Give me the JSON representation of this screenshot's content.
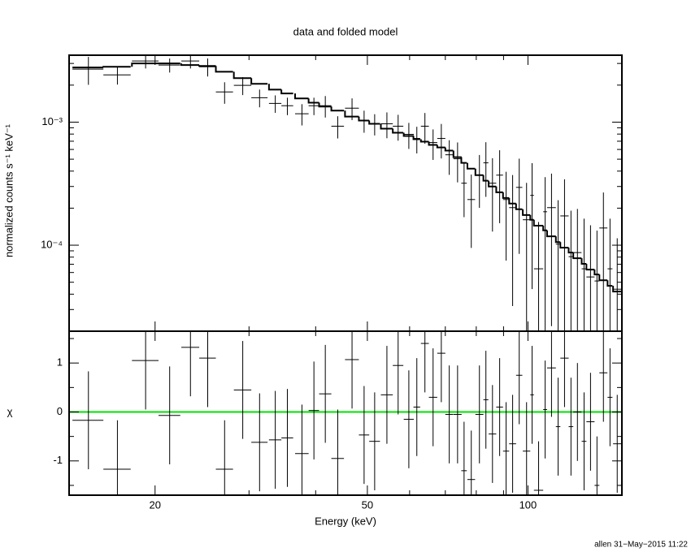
{
  "chart_data": [
    {
      "type": "errorbar",
      "title": "data and folded model",
      "ylabel": "normalized counts s⁻¹ keV⁻¹",
      "log_x": true,
      "log_y": true,
      "xlim": [
        13.8,
        150
      ],
      "ylim": [
        2e-05,
        0.0035
      ],
      "yticks": [
        {
          "value": 0.001,
          "label": "10⁻³"
        },
        {
          "value": 0.0001,
          "label": "10⁻⁴"
        }
      ],
      "yminorticks": [
        3e-05,
        4e-05,
        5e-05,
        6e-05,
        7e-05,
        8e-05,
        9e-05,
        0.0002,
        0.0003,
        0.0004,
        0.0005,
        0.0006,
        0.0007,
        0.0008,
        0.0009,
        0.002,
        0.003
      ],
      "color": "#000000",
      "x": [
        15.0,
        17.0,
        19.2,
        21.3,
        23.3,
        25.1,
        27.0,
        29.2,
        31.4,
        33.6,
        35.4,
        37.7,
        39.7,
        41.7,
        44.0,
        46.8,
        49.3,
        51.6,
        54.4,
        57.1,
        59.8,
        61.9,
        64.1,
        66.4,
        68.8,
        71.2,
        73.8,
        75.9,
        78.3,
        81.1,
        83.4,
        85.8,
        88.5,
        91.0,
        93.6,
        96.3,
        99.4,
        101.8,
        104.7,
        107.7,
        110.7,
        113.9,
        117.1,
        120.4,
        123.8,
        127.4,
        131.0,
        134.7,
        138.5,
        142.5,
        147.0
      ],
      "xerr": [
        1.0,
        1.0,
        1.1,
        1.0,
        0.9,
        0.9,
        1.0,
        1.1,
        1.1,
        0.9,
        0.9,
        1.1,
        0.9,
        1.1,
        1.2,
        1.4,
        1.1,
        1.2,
        1.4,
        1.3,
        1.3,
        0.9,
        1.1,
        1.2,
        1.2,
        1.2,
        1.3,
        0.9,
        1.3,
        1.4,
        0.9,
        1.4,
        1.3,
        1.2,
        1.4,
        1.3,
        1.6,
        0.8,
        2.1,
        0.9,
        2.1,
        1.1,
        2.1,
        1.2,
        2.2,
        1.3,
        2.3,
        1.4,
        2.4,
        1.5,
        2.6
      ],
      "values": [
        0.0027,
        0.00242,
        0.00314,
        0.00291,
        0.00314,
        0.00282,
        0.00176,
        0.00199,
        0.00158,
        0.00142,
        0.00136,
        0.00117,
        0.00136,
        0.00136,
        0.000927,
        0.0013,
        0.00103,
        0.00097,
        0.00097,
        0.000927,
        0.000796,
        0.000737,
        0.000927,
        0.000683,
        0.000737,
        0.000543,
        0.000504,
        0.000319,
        0.000235,
        0.000371,
        0.000467,
        0.000319,
        0.000371,
        0.000235,
        0.000202,
        0.000295,
        0.000161,
        0.000254,
        6.43e-05,
        0.000187,
        0.000202,
        0.000102,
        0.000173,
        8.07e-05,
        8.71e-05,
        6.43e-05,
        5.52e-05,
        5.12e-05,
        0.000138,
        6.43e-05,
        4.39e-05
      ],
      "errors": [
        0.00069,
        0.0004,
        0.00041,
        0.00038,
        0.00041,
        0.00047,
        0.00035,
        0.00033,
        0.00026,
        0.00023,
        0.00022,
        0.00023,
        0.00022,
        0.00027,
        0.00019,
        0.00026,
        0.00021,
        0.00019,
        0.00023,
        0.00022,
        0.00019,
        0.00018,
        0.00026,
        0.00019,
        0.00023,
        0.00017,
        0.00018,
        0.00015,
        0.00014,
        0.00017,
        0.00022,
        0.00019,
        0.00022,
        0.00016,
        0.00017,
        0.00021,
        0.00016,
        0.00021,
        9e-05,
        0.00017,
        0.00018,
        0.00013,
        0.00017,
        0.00011,
        0.00011,
        0.0001,
        9e-05,
        8e-05,
        0.00013,
        0.0001,
        7e-05
      ],
      "model": {
        "color": "#000000",
        "values": [
          0.00278,
          0.00282,
          0.003,
          0.003,
          0.00291,
          0.00286,
          0.00257,
          0.00228,
          0.00205,
          0.00184,
          0.00171,
          0.00156,
          0.00144,
          0.00134,
          0.00124,
          0.00111,
          0.00103,
          0.00097,
          0.000885,
          0.00082,
          0.000772,
          0.000726,
          0.000694,
          0.000653,
          0.000623,
          0.000587,
          0.000519,
          0.000467,
          0.000419,
          0.000371,
          0.000334,
          0.0003,
          0.000269,
          0.000242,
          0.000218,
          0.000196,
          0.000176,
          0.000161,
          0.000144,
          0.000132,
          0.000118,
          0.000106,
          9.55e-05,
          8.71e-05,
          7.83e-05,
          7.05e-05,
          6.33e-05,
          5.78e-05,
          5.19e-05,
          4.67e-05,
          4.2e-05
        ]
      }
    },
    {
      "type": "residual",
      "ylabel": "χ",
      "xlabel": "Energy (keV)",
      "log_x": true,
      "log_y": false,
      "xlim": [
        13.8,
        150
      ],
      "ylim": [
        -1.7,
        1.65
      ],
      "xticks": [
        20,
        50,
        100
      ],
      "xminorticks": [
        30,
        40,
        60,
        70,
        80,
        90
      ],
      "yticks": [
        -1,
        0,
        1
      ],
      "yminorticks": [
        -1.5,
        -0.5,
        0.5,
        1.5
      ],
      "reference_line": {
        "value": 0,
        "color": "#00e000"
      },
      "color": "#000000",
      "x": [
        15.0,
        17.0,
        19.2,
        21.3,
        23.3,
        25.1,
        27.0,
        29.2,
        31.4,
        33.6,
        35.4,
        37.7,
        39.7,
        41.7,
        44.0,
        46.8,
        49.3,
        51.6,
        54.4,
        57.1,
        59.8,
        61.9,
        64.1,
        66.4,
        68.8,
        71.2,
        73.8,
        75.9,
        78.3,
        81.1,
        83.4,
        85.8,
        88.5,
        91.0,
        93.6,
        96.3,
        99.4,
        101.8,
        104.7,
        107.7,
        110.7,
        113.9,
        117.1,
        120.4,
        123.8,
        127.4,
        131.0,
        134.7,
        138.5,
        142.5,
        147.0
      ],
      "xerr": [
        1.0,
        1.0,
        1.1,
        1.0,
        0.9,
        0.9,
        1.0,
        1.1,
        1.1,
        0.9,
        0.9,
        1.1,
        0.9,
        1.1,
        1.2,
        1.4,
        1.1,
        1.2,
        1.4,
        1.3,
        1.3,
        0.9,
        1.1,
        1.2,
        1.2,
        1.2,
        1.3,
        0.9,
        1.3,
        1.4,
        0.9,
        1.4,
        1.3,
        1.2,
        1.4,
        1.3,
        1.6,
        0.8,
        2.1,
        0.9,
        2.1,
        1.1,
        2.1,
        1.2,
        2.2,
        1.3,
        2.3,
        1.4,
        2.4,
        1.5,
        2.6
      ],
      "values": [
        -0.17,
        -1.17,
        1.05,
        -0.07,
        1.32,
        1.1,
        -1.17,
        0.45,
        -0.62,
        -0.57,
        -0.53,
        -0.85,
        0.03,
        0.37,
        -0.95,
        1.07,
        -0.47,
        -0.6,
        0.35,
        0.95,
        -0.15,
        0.1,
        1.4,
        0.3,
        1.2,
        -0.05,
        -0.05,
        -1.2,
        -1.38,
        -0.05,
        0.25,
        -0.45,
        0.1,
        -0.8,
        -0.65,
        0.75,
        -0.8,
        0.35,
        -1.6,
        0.05,
        0.9,
        -0.3,
        1.1,
        -0.3,
        0.0,
        -0.6,
        -0.2,
        -1.5,
        0.8,
        0.3,
        -0.65
      ],
      "errors": [
        1,
        1,
        1,
        1,
        1,
        1,
        1,
        1,
        1,
        1,
        1,
        1,
        1,
        1,
        1,
        1,
        1,
        1,
        1,
        1,
        1,
        1,
        1,
        1,
        1,
        1,
        1,
        1,
        1,
        1,
        1,
        1,
        1,
        1,
        1,
        1,
        1,
        1,
        1,
        1,
        1,
        1,
        1,
        1,
        1,
        1,
        1,
        1,
        1,
        1,
        1
      ]
    }
  ],
  "footer": "allen 31−May−2015 11:22"
}
